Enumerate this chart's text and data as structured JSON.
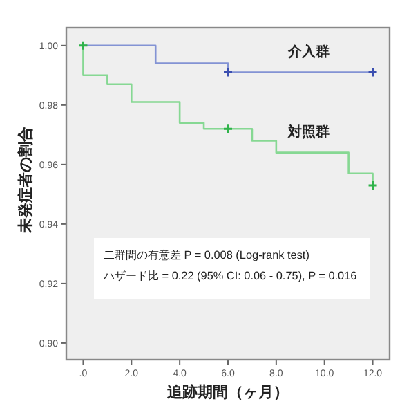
{
  "chart_data": {
    "type": "step",
    "xlabel": "追跡期間（ヶ月）",
    "ylabel": "未発症者の割合",
    "xlim": [
      -0.7,
      12.7
    ],
    "ylim": [
      0.8944,
      1.006
    ],
    "xticks": [
      {
        "value": 0,
        "label": ".0"
      },
      {
        "value": 2,
        "label": "2.0"
      },
      {
        "value": 4,
        "label": "4.0"
      },
      {
        "value": 6,
        "label": "6.0"
      },
      {
        "value": 8,
        "label": "8.0"
      },
      {
        "value": 10,
        "label": "10.0"
      },
      {
        "value": 12,
        "label": "12.0"
      }
    ],
    "yticks": [
      {
        "value": 0.9,
        "label": "0.90"
      },
      {
        "value": 0.92,
        "label": "0.92"
      },
      {
        "value": 0.94,
        "label": "0.94"
      },
      {
        "value": 0.96,
        "label": "0.96"
      },
      {
        "value": 0.98,
        "label": "0.98"
      },
      {
        "value": 1,
        "label": "1.00"
      }
    ],
    "series": [
      {
        "name": "介入群",
        "color": "#8393d4",
        "x": [
          0,
          3,
          6,
          12
        ],
        "values": [
          1.0,
          0.994,
          0.991,
          0.991
        ]
      },
      {
        "name": "対照群",
        "color": "#86d893",
        "x": [
          0,
          0,
          1,
          2,
          4,
          5,
          7,
          8,
          11,
          12
        ],
        "values": [
          1.0,
          0.99,
          0.987,
          0.981,
          0.974,
          0.972,
          0.968,
          0.964,
          0.957,
          0.953
        ]
      },
      {
        "type": "scatter",
        "marker": "cross",
        "color": "#3b4fb0",
        "x": [
          6,
          12
        ],
        "values": [
          0.991,
          0.991
        ]
      },
      {
        "type": "scatter",
        "marker": "cross",
        "color": "#2fb34a",
        "x": [
          0,
          6,
          12
        ],
        "values": [
          1.0,
          0.972,
          0.953
        ]
      }
    ],
    "annotations": [
      "二群間の有意差  P = 0.008 (Log-rank test)",
      "ハザード比 = 0.22 (95% CI: 0.06 - 0.75), P = 0.016"
    ]
  }
}
